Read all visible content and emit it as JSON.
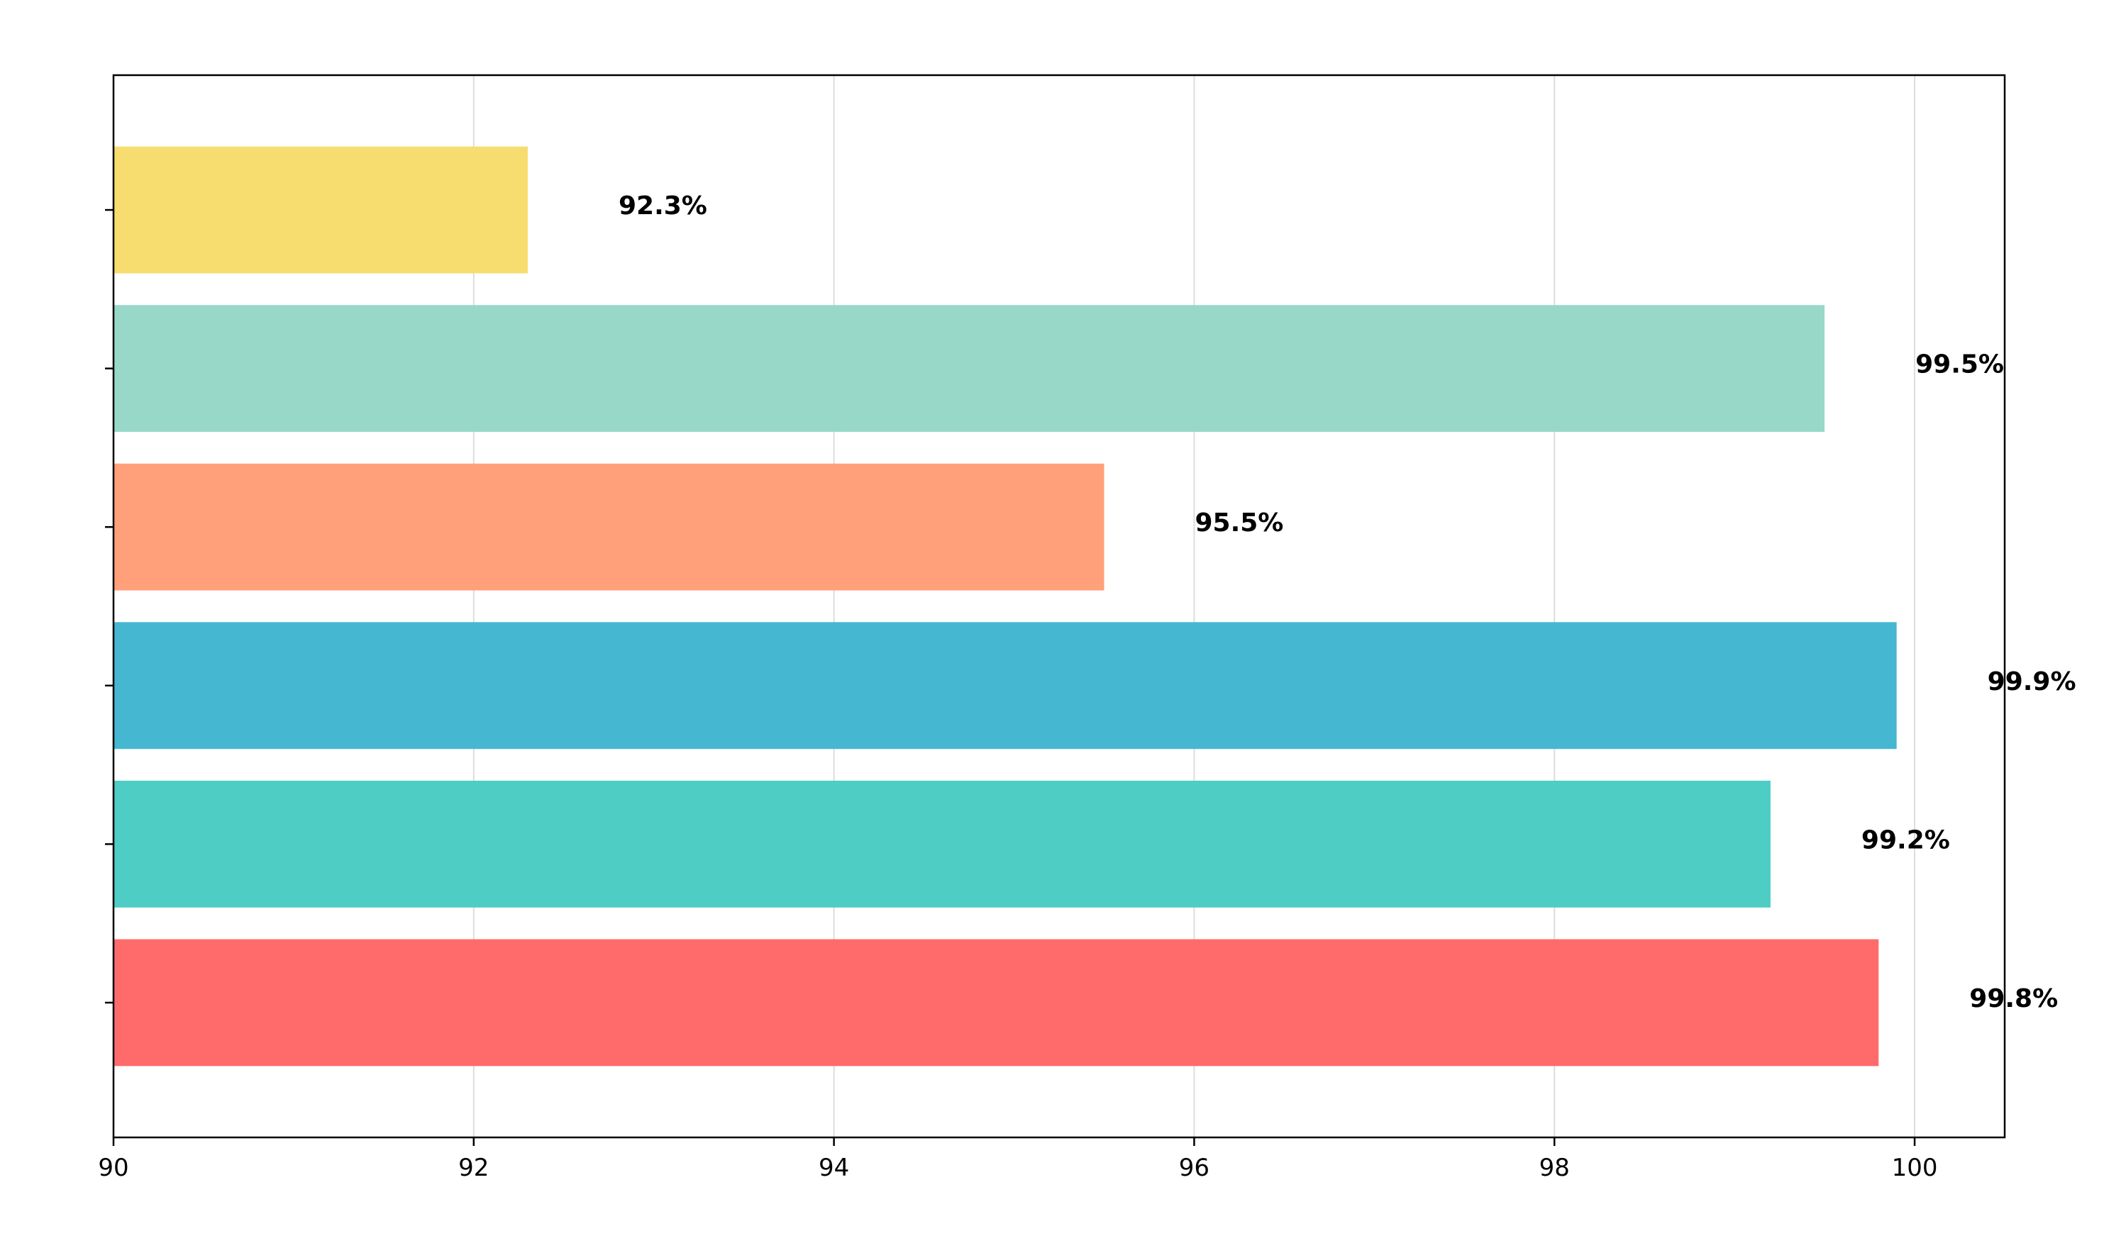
{
  "chart_data": {
    "type": "bar",
    "orientation": "horizontal",
    "title": "",
    "xlabel": "",
    "ylabel": "",
    "categories": [
      "",
      "",
      "",
      "",
      "",
      ""
    ],
    "values": [
      99.8,
      99.2,
      99.9,
      95.5,
      99.5,
      92.3
    ],
    "value_labels": [
      "99.8%",
      "99.2%",
      "99.9%",
      "95.5%",
      "99.5%",
      "92.3%"
    ],
    "colors": [
      "#FF6B6B",
      "#4ECDC4",
      "#45B7D1",
      "#FFA07A",
      "#98D8C8",
      "#F7DC6F"
    ],
    "xlim": [
      90,
      100.5
    ],
    "xticks": [
      90,
      92,
      94,
      96,
      98,
      100
    ],
    "xtick_labels": [
      "90",
      "92",
      "94",
      "96",
      "98",
      "100"
    ],
    "grid": "x",
    "legend": "none"
  }
}
